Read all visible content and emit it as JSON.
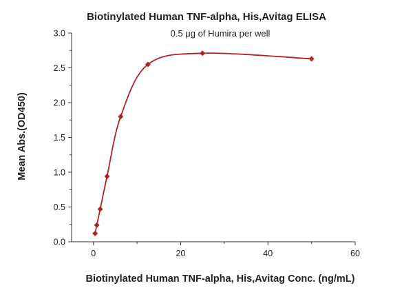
{
  "chart_data": {
    "type": "scatter",
    "title": "Biotinylated Human TNF-alpha, His,Avitag ELISA",
    "subtitle": "0.5 μg of Humira per well",
    "xlabel": "Biotinylated Human TNF-alpha, His,Avitag Conc. (ng/mL)",
    "ylabel": "Mean Abs.(OD450)",
    "xlim": [
      -5,
      60
    ],
    "ylim": [
      0,
      3.0
    ],
    "xticks": [
      0,
      20,
      40,
      60
    ],
    "xtick_labels": [
      "0",
      "20",
      "40",
      "60"
    ],
    "yticks": [
      0.0,
      0.5,
      1.0,
      1.5,
      2.0,
      2.5,
      3.0
    ],
    "ytick_labels": [
      "0.0",
      "0.5",
      "1.0",
      "1.5",
      "2.0",
      "2.5",
      "3.0"
    ],
    "grid": false,
    "series": [
      {
        "x": [
          0.39,
          0.78,
          1.56,
          3.13,
          6.25,
          12.5,
          25,
          50
        ],
        "y": [
          0.12,
          0.24,
          0.47,
          0.94,
          1.8,
          2.55,
          2.71,
          2.63
        ],
        "color": "#b22222",
        "marker": "diamond",
        "fit_curve": true
      }
    ]
  }
}
